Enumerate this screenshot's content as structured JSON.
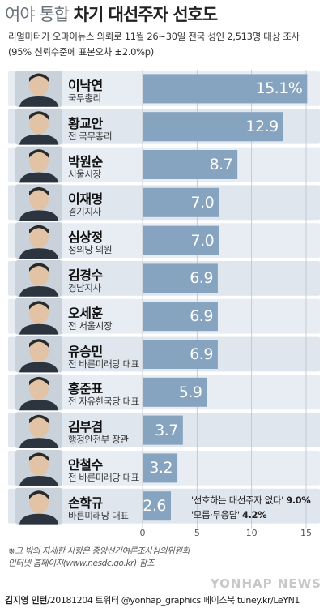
{
  "header": {
    "title_prefix": "여야 통합",
    "title_main": "차기 대선주자 선호도",
    "subtitle_line1": "리얼미터가 오마이뉴스 의뢰로 11월 26~30일 전국 성인 2,513명 대상 조사",
    "subtitle_line2": "(95% 신뢰수준에 표본오차 ±2.0%p)"
  },
  "colors": {
    "bar": "#86a3c0",
    "row_band": "#e8edf3",
    "row_band_alt": "#dfe6ee",
    "title_light": "#6b7179"
  },
  "chart_data": {
    "type": "bar",
    "orientation": "horizontal",
    "unit": "%",
    "categories": [
      "이낙연",
      "황교안",
      "박원순",
      "이재명",
      "심상정",
      "김경수",
      "오세훈",
      "유승민",
      "홍준표",
      "김부겸",
      "안철수",
      "손학규"
    ],
    "positions": [
      "국무총리",
      "전 국무총리",
      "서울시장",
      "경기지사",
      "정의당 의원",
      "경남지사",
      "전 서울시장",
      "전 바른미래당 대표",
      "전 자유한국당 대표",
      "행정안전부 장관",
      "전 바른미래당 대표",
      "바른미래당 대표"
    ],
    "values": [
      15.1,
      12.9,
      8.7,
      7.0,
      7.0,
      6.9,
      6.9,
      6.9,
      5.9,
      3.7,
      3.2,
      2.6
    ],
    "value_labels": [
      "15.1%",
      "12.9",
      "8.7",
      "7.0",
      "7.0",
      "6.9",
      "6.9",
      "6.9",
      "5.9",
      "3.7",
      "3.2",
      "2.6"
    ],
    "xlim": [
      0,
      15
    ],
    "xticks": [
      "0",
      "5",
      "10",
      "15"
    ],
    "grid": true,
    "annotations": [
      {
        "label": "'선호하는 대선주자 없다'",
        "value": "9.0%"
      },
      {
        "label": "'모름·무응답'",
        "value": "4.2%"
      }
    ]
  },
  "footnote": {
    "line1": "※그 밖의 자세한 사항은 중앙선거여론조사심의위원회",
    "line2": "인터넷 홈페이지(www.nesdc.go.kr) 참조"
  },
  "credit": {
    "author": "김지영 인턴/",
    "meta": "20181204 트위터 @yonhap_graphics  페이스북 tuney.kr/LeYN1"
  },
  "watermark": "YONHAP NEWS"
}
